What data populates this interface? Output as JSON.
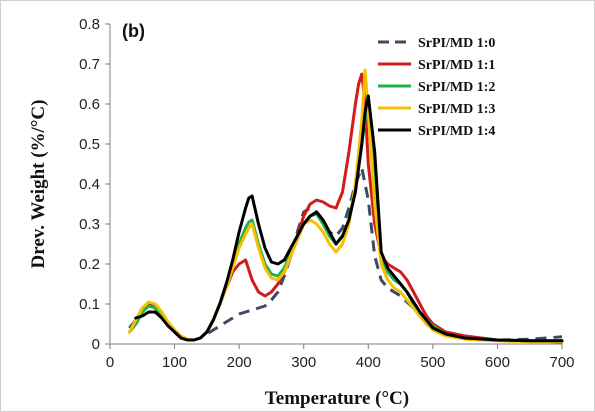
{
  "chart_data": {
    "type": "line",
    "panel_label": "(b)",
    "title": "",
    "xlabel": "Temperature (°C)",
    "ylabel": "Drev. Weight (%/°C)",
    "xlim": [
      0,
      700
    ],
    "ylim": [
      0,
      0.8
    ],
    "xticks": [
      0,
      100,
      200,
      300,
      400,
      500,
      600,
      700
    ],
    "yticks": [
      0,
      0.1,
      0.2,
      0.3,
      0.4,
      0.5,
      0.6,
      0.7,
      0.8
    ],
    "grid": false,
    "legend_position": "top-right",
    "series": [
      {
        "name": "SrPI/MD 1:0",
        "color": "#3d4a63",
        "dash": "dashed",
        "x": [
          30,
          40,
          50,
          60,
          70,
          80,
          90,
          100,
          110,
          120,
          130,
          140,
          150,
          160,
          170,
          180,
          190,
          200,
          210,
          220,
          230,
          240,
          250,
          260,
          270,
          280,
          290,
          300,
          310,
          320,
          330,
          340,
          350,
          360,
          370,
          380,
          390,
          400,
          410,
          420,
          430,
          440,
          450,
          460,
          470,
          480,
          490,
          500,
          520,
          550,
          600,
          650,
          700
        ],
        "values": [
          0.04,
          0.06,
          0.09,
          0.1,
          0.09,
          0.07,
          0.05,
          0.03,
          0.015,
          0.01,
          0.01,
          0.015,
          0.025,
          0.035,
          0.045,
          0.055,
          0.065,
          0.075,
          0.08,
          0.085,
          0.09,
          0.095,
          0.11,
          0.13,
          0.17,
          0.22,
          0.28,
          0.33,
          0.34,
          0.33,
          0.3,
          0.28,
          0.27,
          0.29,
          0.34,
          0.4,
          0.44,
          0.36,
          0.22,
          0.16,
          0.14,
          0.13,
          0.12,
          0.105,
          0.09,
          0.07,
          0.055,
          0.04,
          0.025,
          0.015,
          0.01,
          0.012,
          0.018
        ]
      },
      {
        "name": "SrPI/MD 1:1",
        "color": "#d01c1c",
        "dash": "solid",
        "x": [
          30,
          40,
          50,
          60,
          70,
          80,
          90,
          100,
          110,
          120,
          130,
          140,
          150,
          160,
          170,
          180,
          190,
          200,
          210,
          220,
          230,
          240,
          250,
          260,
          270,
          280,
          290,
          300,
          310,
          320,
          330,
          340,
          350,
          360,
          370,
          380,
          385,
          390,
          395,
          400,
          410,
          420,
          430,
          440,
          450,
          460,
          470,
          480,
          490,
          500,
          520,
          550,
          600,
          650,
          700
        ],
        "values": [
          0.03,
          0.05,
          0.08,
          0.1,
          0.09,
          0.07,
          0.05,
          0.03,
          0.015,
          0.01,
          0.01,
          0.015,
          0.03,
          0.06,
          0.1,
          0.14,
          0.18,
          0.2,
          0.21,
          0.16,
          0.13,
          0.12,
          0.13,
          0.15,
          0.18,
          0.22,
          0.27,
          0.32,
          0.35,
          0.36,
          0.355,
          0.345,
          0.34,
          0.38,
          0.48,
          0.6,
          0.65,
          0.675,
          0.6,
          0.45,
          0.3,
          0.22,
          0.2,
          0.19,
          0.18,
          0.16,
          0.13,
          0.1,
          0.07,
          0.05,
          0.03,
          0.02,
          0.01,
          0.008,
          0.005
        ]
      },
      {
        "name": "SrPI/MD 1:2",
        "color": "#22b04a",
        "dash": "solid",
        "x": [
          30,
          40,
          50,
          60,
          70,
          80,
          90,
          100,
          110,
          120,
          130,
          140,
          150,
          160,
          170,
          180,
          190,
          200,
          210,
          215,
          220,
          230,
          240,
          250,
          260,
          270,
          280,
          290,
          300,
          310,
          320,
          330,
          340,
          350,
          360,
          370,
          380,
          390,
          395,
          400,
          410,
          420,
          430,
          440,
          450,
          460,
          470,
          480,
          490,
          500,
          520,
          550,
          600,
          650,
          700
        ],
        "values": [
          0.03,
          0.05,
          0.08,
          0.095,
          0.09,
          0.07,
          0.05,
          0.03,
          0.015,
          0.01,
          0.01,
          0.015,
          0.03,
          0.06,
          0.1,
          0.15,
          0.2,
          0.25,
          0.29,
          0.305,
          0.31,
          0.25,
          0.2,
          0.175,
          0.17,
          0.19,
          0.23,
          0.27,
          0.3,
          0.32,
          0.325,
          0.3,
          0.27,
          0.25,
          0.27,
          0.31,
          0.39,
          0.5,
          0.56,
          0.6,
          0.4,
          0.22,
          0.18,
          0.16,
          0.15,
          0.13,
          0.1,
          0.08,
          0.06,
          0.045,
          0.025,
          0.015,
          0.01,
          0.008,
          0.008
        ]
      },
      {
        "name": "SrPI/MD 1:3",
        "color": "#f5c000",
        "dash": "solid",
        "x": [
          30,
          40,
          50,
          60,
          70,
          80,
          90,
          100,
          110,
          120,
          130,
          140,
          150,
          160,
          170,
          180,
          190,
          200,
          210,
          215,
          220,
          230,
          240,
          250,
          260,
          270,
          280,
          290,
          300,
          310,
          320,
          330,
          340,
          350,
          360,
          370,
          380,
          390,
          395,
          400,
          410,
          420,
          430,
          440,
          450,
          460,
          470,
          480,
          490,
          500,
          520,
          550,
          600,
          650,
          700
        ],
        "values": [
          0.03,
          0.06,
          0.09,
          0.105,
          0.1,
          0.08,
          0.055,
          0.035,
          0.02,
          0.012,
          0.01,
          0.015,
          0.03,
          0.06,
          0.1,
          0.14,
          0.19,
          0.24,
          0.275,
          0.29,
          0.3,
          0.24,
          0.19,
          0.165,
          0.16,
          0.18,
          0.22,
          0.26,
          0.3,
          0.31,
          0.3,
          0.28,
          0.25,
          0.23,
          0.25,
          0.3,
          0.4,
          0.56,
          0.685,
          0.58,
          0.35,
          0.2,
          0.16,
          0.14,
          0.13,
          0.11,
          0.09,
          0.07,
          0.05,
          0.035,
          0.02,
          0.012,
          0.008,
          0.006,
          0.006
        ]
      },
      {
        "name": "SrPI/MD 1:4",
        "color": "#000000",
        "dash": "solid",
        "x": [
          40,
          50,
          60,
          70,
          80,
          90,
          100,
          110,
          120,
          130,
          140,
          150,
          160,
          170,
          180,
          190,
          200,
          210,
          215,
          220,
          230,
          240,
          250,
          260,
          270,
          280,
          290,
          300,
          310,
          320,
          330,
          340,
          350,
          360,
          370,
          380,
          390,
          395,
          400,
          410,
          420,
          430,
          440,
          450,
          460,
          470,
          480,
          490,
          500,
          520,
          550,
          600,
          650,
          700
        ],
        "values": [
          0.065,
          0.07,
          0.08,
          0.08,
          0.065,
          0.045,
          0.03,
          0.015,
          0.01,
          0.01,
          0.015,
          0.03,
          0.06,
          0.1,
          0.15,
          0.21,
          0.28,
          0.34,
          0.365,
          0.37,
          0.3,
          0.24,
          0.205,
          0.2,
          0.21,
          0.24,
          0.27,
          0.3,
          0.32,
          0.33,
          0.31,
          0.28,
          0.25,
          0.27,
          0.31,
          0.38,
          0.5,
          0.58,
          0.62,
          0.48,
          0.23,
          0.19,
          0.17,
          0.15,
          0.13,
          0.105,
          0.08,
          0.06,
          0.04,
          0.025,
          0.015,
          0.01,
          0.008,
          0.008
        ]
      }
    ]
  }
}
